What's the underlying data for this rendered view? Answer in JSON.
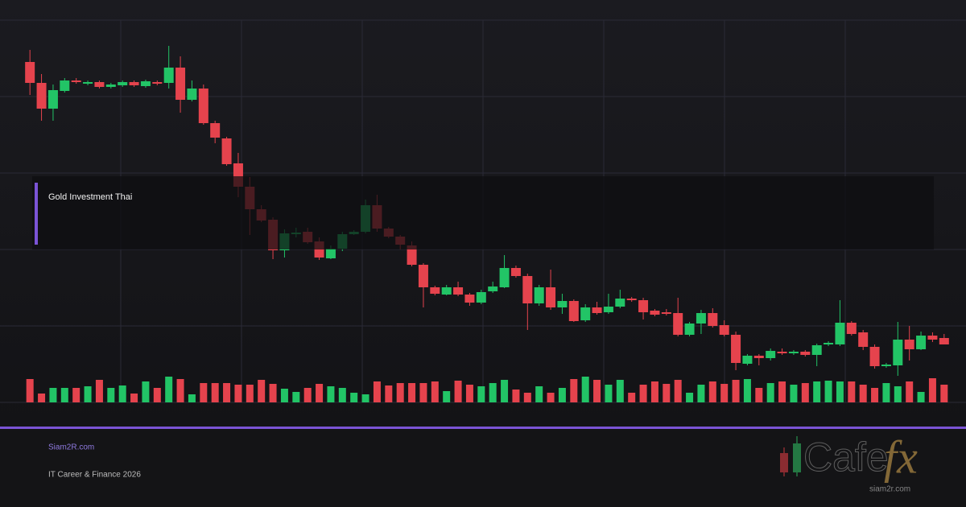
{
  "chart_data": {
    "type": "candlestick",
    "open": [
      423,
      397,
      365,
      387,
      400,
      396,
      398,
      392,
      394,
      398,
      393,
      398,
      397,
      416,
      376,
      390,
      347,
      328,
      297,
      268,
      240,
      227,
      189,
      209,
      212,
      200,
      179,
      191,
      209,
      212,
      245,
      216,
      206,
      195,
      171,
      143,
      134,
      143,
      134,
      124,
      138,
      143,
      167,
      157,
      123,
      143,
      118,
      126,
      102,
      118,
      112,
      119,
      129,
      127,
      114,
      112,
      111,
      84,
      98,
      111,
      96,
      84,
      48,
      58,
      55,
      63,
      61,
      63,
      59,
      72,
      72,
      99,
      87,
      69,
      45,
      46,
      78,
      66,
      83,
      80
    ],
    "high": [
      438,
      408,
      395,
      403,
      403,
      400,
      400,
      397,
      400,
      400,
      401,
      400,
      443,
      430,
      400,
      395,
      350,
      330,
      310,
      280,
      245,
      230,
      215,
      217,
      217,
      205,
      195,
      212,
      214,
      252,
      258,
      218,
      208,
      200,
      173,
      145,
      146,
      150,
      136,
      140,
      150,
      183,
      170,
      160,
      146,
      165,
      135,
      128,
      122,
      125,
      135,
      140,
      131,
      130,
      116,
      116,
      130,
      100,
      115,
      117,
      102,
      88,
      60,
      60,
      67,
      67,
      65,
      65,
      73,
      76,
      127,
      101,
      90,
      72,
      49,
      100,
      95,
      88,
      87,
      85
    ],
    "low": [
      382,
      350,
      350,
      385,
      396,
      394,
      390,
      390,
      392,
      392,
      391,
      394,
      390,
      360,
      374,
      345,
      322,
      294,
      255,
      208,
      224,
      178,
      180,
      205,
      197,
      177,
      178,
      188,
      208,
      210,
      212,
      204,
      190,
      169,
      118,
      133,
      133,
      132,
      120,
      122,
      136,
      142,
      155,
      90,
      120,
      115,
      110,
      100,
      100,
      109,
      110,
      117,
      125,
      103,
      107,
      108,
      82,
      82,
      85,
      93,
      82,
      40,
      46,
      46,
      52,
      59,
      59,
      57,
      45,
      70,
      70,
      83,
      65,
      42,
      43,
      33,
      52,
      65,
      75,
      72
    ],
    "close": [
      397,
      365,
      388,
      400,
      398,
      398,
      392,
      395,
      398,
      394,
      399,
      396,
      416,
      376,
      390,
      347,
      329,
      296,
      268,
      240,
      226,
      189,
      210,
      211,
      199,
      180,
      191,
      209,
      212,
      245,
      216,
      206,
      196,
      171,
      143,
      135,
      143,
      134,
      124,
      137,
      144,
      167,
      157,
      123,
      143,
      118,
      126,
      101,
      118,
      111,
      119,
      129,
      127,
      112,
      109,
      110,
      84,
      98,
      111,
      95,
      84,
      49,
      58,
      55,
      64,
      61,
      63,
      59,
      71,
      74,
      99,
      85,
      69,
      45,
      47,
      78,
      66,
      83,
      78,
      72
    ],
    "volume": [
      29,
      11,
      18,
      18,
      18,
      20,
      28,
      18,
      21,
      11,
      26,
      18,
      32,
      29,
      10,
      24,
      24,
      24,
      22,
      22,
      28,
      23,
      17,
      13,
      18,
      23,
      20,
      18,
      12,
      10,
      26,
      21,
      24,
      24,
      24,
      26,
      14,
      27,
      22,
      20,
      24,
      28,
      16,
      12,
      20,
      12,
      18,
      29,
      32,
      28,
      22,
      28,
      12,
      22,
      26,
      23,
      28,
      12,
      22,
      26,
      23,
      28,
      29,
      18,
      24,
      26,
      22,
      24,
      26,
      27,
      26,
      26,
      22,
      18,
      24,
      20,
      26,
      13,
      30,
      22
    ],
    "up_color": "#22c466",
    "down_color": "#e5434d",
    "ylim": [
      0,
      475
    ],
    "volume_lim": [
      0,
      100
    ]
  },
  "overlay": {
    "label": "Gold Investment Thai"
  },
  "footer": {
    "site": "Siam2R.com",
    "tagline": "IT Career & Finance 2026"
  },
  "logo": {
    "word": "Cafe",
    "mark": "fx",
    "url": "siam2r.com"
  }
}
